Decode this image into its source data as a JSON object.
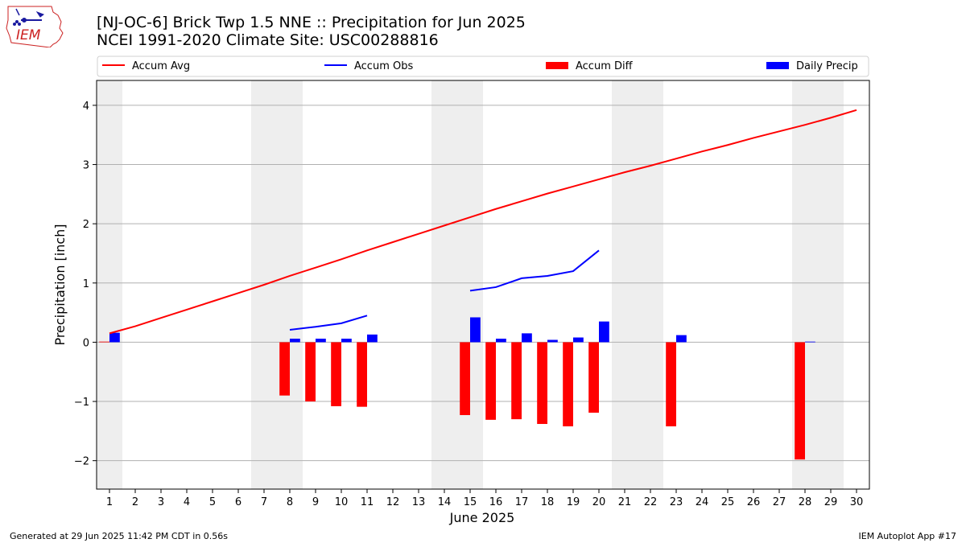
{
  "header": {
    "title_line1": "[NJ-OC-6] Brick Twp 1.5 NNE :: Precipitation for Jun 2025",
    "title_line2": "NCEI 1991-2020 Climate Site: USC00288816",
    "logo_text": "IEM"
  },
  "footer": {
    "generated": "Generated at 29 Jun 2025 11:42 PM CDT in 0.56s",
    "app": "IEM Autoplot App #17"
  },
  "chart_data": {
    "type": "bar",
    "xlabel": "June 2025",
    "ylabel": "Precipitation [inch]",
    "xlim": [
      0.5,
      30.5
    ],
    "ylim": [
      -2.48,
      4.42
    ],
    "yticks": [
      -2,
      -1,
      0,
      1,
      2,
      3,
      4
    ],
    "xticks": [
      1,
      2,
      3,
      4,
      5,
      6,
      7,
      8,
      9,
      10,
      11,
      12,
      13,
      14,
      15,
      16,
      17,
      18,
      19,
      20,
      21,
      22,
      23,
      24,
      25,
      26,
      27,
      28,
      29,
      30
    ],
    "weekend_shading": [
      [
        0.5,
        1.5
      ],
      [
        6.5,
        8.5
      ],
      [
        13.5,
        15.5
      ],
      [
        20.5,
        22.5
      ],
      [
        27.5,
        29.5
      ]
    ],
    "grid": "horizontal",
    "legend_placement": "top",
    "legend": [
      {
        "name": "Accum Avg",
        "kind": "line",
        "color": "#ff0000"
      },
      {
        "name": "Accum Obs",
        "kind": "line",
        "color": "#0000ff"
      },
      {
        "name": "Accum Diff",
        "kind": "bar",
        "color": "#ff0000"
      },
      {
        "name": "Daily Precip",
        "kind": "bar",
        "color": "#0000ff"
      }
    ],
    "series": [
      {
        "name": "Accum Avg",
        "type": "line",
        "color": "#ff0000",
        "x": [
          1,
          2,
          3,
          4,
          5,
          6,
          7,
          8,
          9,
          10,
          11,
          12,
          13,
          14,
          15,
          16,
          17,
          18,
          19,
          20,
          21,
          22,
          23,
          24,
          25,
          26,
          27,
          28,
          29,
          30
        ],
        "values": [
          0.15,
          0.27,
          0.41,
          0.55,
          0.69,
          0.83,
          0.97,
          1.12,
          1.26,
          1.4,
          1.55,
          1.69,
          1.83,
          1.97,
          2.11,
          2.25,
          2.38,
          2.51,
          2.63,
          2.75,
          2.87,
          2.98,
          3.1,
          3.22,
          3.33,
          3.45,
          3.56,
          3.67,
          3.79,
          3.92
        ]
      },
      {
        "name": "Accum Obs",
        "type": "line",
        "color": "#0000ff",
        "segments": [
          {
            "x": [
              8,
              9,
              10,
              11
            ],
            "values": [
              0.21,
              0.26,
              0.32,
              0.45
            ]
          },
          {
            "x": [
              15,
              16,
              17,
              18,
              19,
              20
            ],
            "values": [
              0.87,
              0.93,
              1.08,
              1.12,
              1.2,
              1.55
            ]
          }
        ]
      },
      {
        "name": "Accum Diff",
        "type": "bar",
        "color": "#ff0000",
        "x": [
          1,
          8,
          9,
          10,
          11,
          15,
          16,
          17,
          18,
          19,
          20,
          23,
          28
        ],
        "values": [
          0.01,
          -0.9,
          -1.0,
          -1.08,
          -1.09,
          -1.23,
          -1.31,
          -1.3,
          -1.38,
          -1.42,
          -1.19,
          -1.42,
          -1.98
        ]
      },
      {
        "name": "Daily Precip",
        "type": "bar",
        "color": "#0000ff",
        "x": [
          1,
          8,
          9,
          10,
          11,
          15,
          16,
          17,
          18,
          19,
          20,
          23,
          28
        ],
        "values": [
          0.16,
          0.06,
          0.06,
          0.06,
          0.13,
          0.42,
          0.06,
          0.15,
          0.04,
          0.08,
          0.35,
          0.12,
          0.01
        ]
      }
    ]
  }
}
